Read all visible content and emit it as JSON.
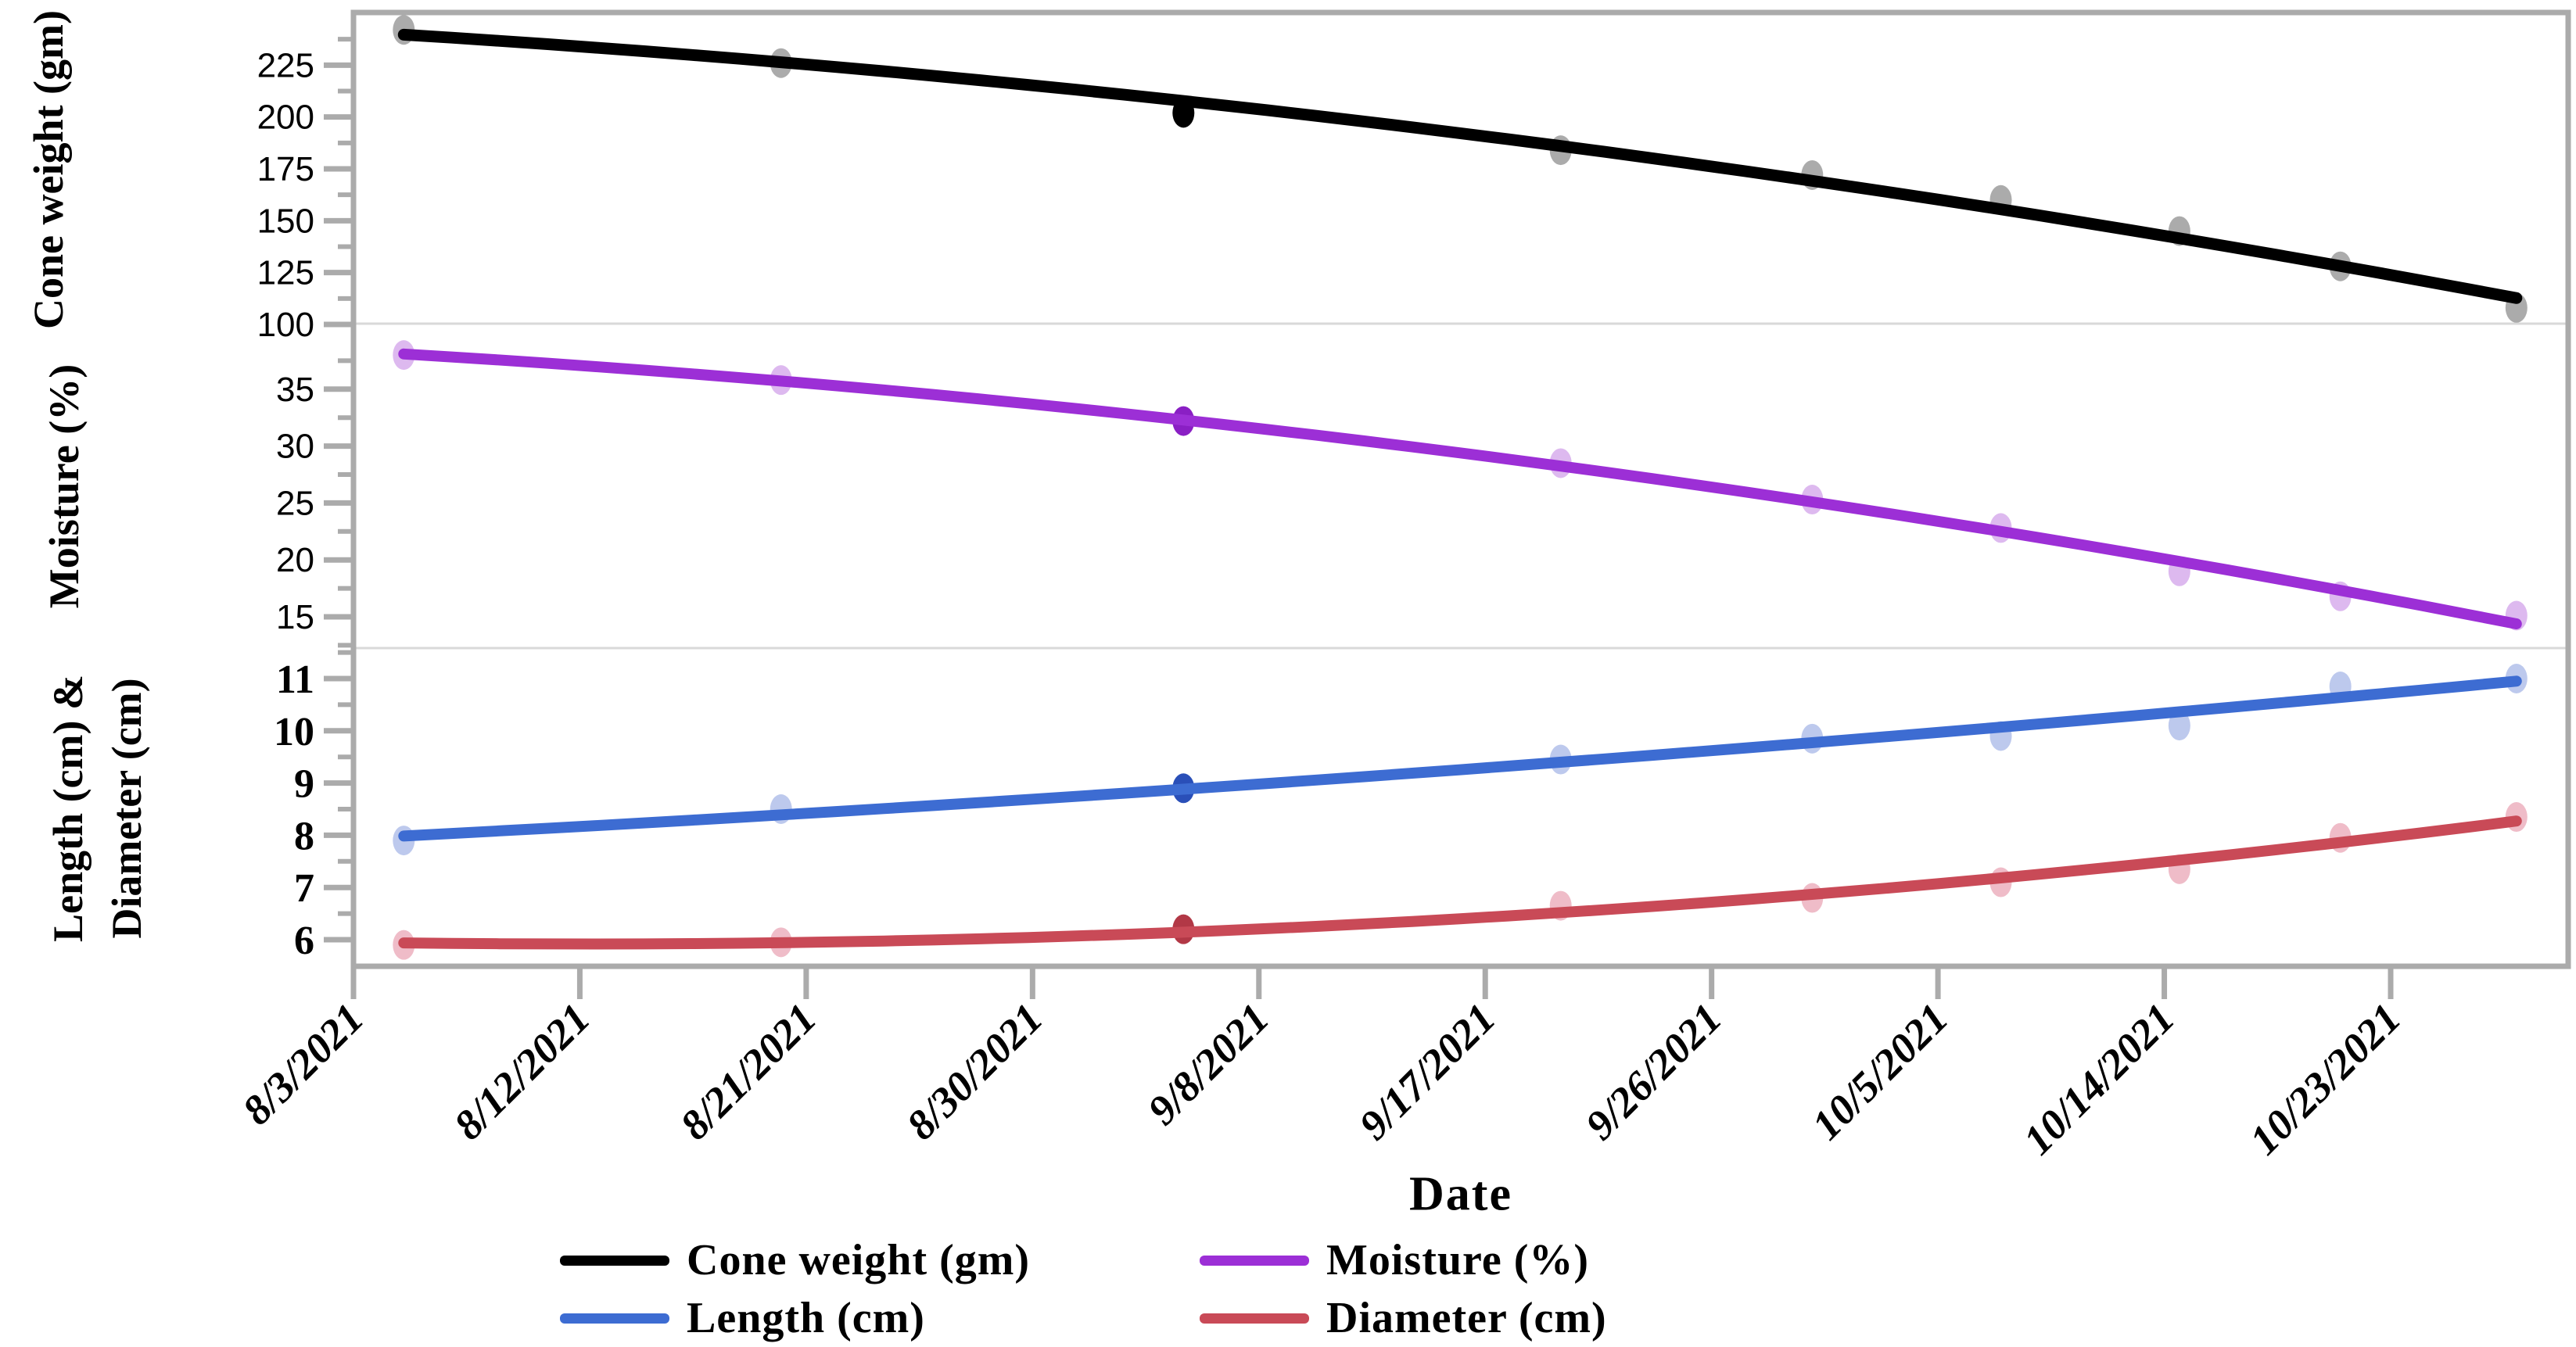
{
  "chart_data": {
    "type": "line",
    "title": "",
    "xlabel": "Date",
    "x_ticks": {
      "labels": [
        "8/3/2021",
        "8/12/2021",
        "8/21/2021",
        "8/30/2021",
        "9/8/2021",
        "9/17/2021",
        "9/26/2021",
        "10/5/2021",
        "10/14/2021",
        "10/23/2021"
      ],
      "days": [
        0,
        9,
        18,
        27,
        36,
        45,
        54,
        63,
        72,
        81
      ]
    },
    "x_range_days": [
      0,
      88
    ],
    "measurement_dates": [
      "8/5/2021",
      "8/20/2021",
      "9/5/2021",
      "9/20/2021",
      "9/30/2021",
      "10/7/2021",
      "10/14/2021",
      "10/21/2021",
      "10/28/2021"
    ],
    "measurement_days": [
      2,
      17,
      33,
      48,
      58,
      65.5,
      72.6,
      79,
      86
    ],
    "panels": [
      {
        "ylabel": "Cone weight  (gm)",
        "ylim": [
          100,
          250
        ],
        "yticks": [
          100,
          125,
          150,
          175,
          200,
          225
        ],
        "yticks_minor": [
          112.5,
          137.5,
          162.5,
          187.5,
          212.5,
          237.5
        ],
        "grid": "off"
      },
      {
        "ylabel": "Moisture (%)",
        "ylim": [
          12,
          41
        ],
        "yticks": [
          15,
          20,
          25,
          30,
          35
        ],
        "yticks_minor": [
          12.5,
          17.5,
          22.5,
          27.5,
          32.5,
          37.5
        ],
        "grid": "off"
      },
      {
        "ylabel_line1": "Length (cm) &",
        "ylabel_line2": "Diameter (cm)",
        "ylim": [
          5.5,
          11.55
        ],
        "yticks": [
          6,
          7,
          8,
          9,
          10,
          11
        ],
        "yticks_minor": [
          6.5,
          7.5,
          8.5,
          9.5,
          10.5,
          11.5
        ],
        "grid": "off"
      }
    ],
    "series": [
      {
        "name": "Cone weight  (gm)",
        "panel": 0,
        "line_color": "#000000",
        "marker_color": "#ABABAB",
        "marker_emphasis_color": "#000000",
        "emphasis_index": 2,
        "values": [
          242,
          226,
          202,
          184,
          172,
          160,
          145,
          128,
          108
        ]
      },
      {
        "name": "Moisture (%)",
        "panel": 1,
        "line_color": "#9C2FD6",
        "marker_color": "#DDB9EF",
        "marker_emphasis_color": "#8A1FC4",
        "emphasis_index": 2,
        "values": [
          38.0,
          35.8,
          32.2,
          28.5,
          25.3,
          22.8,
          19.0,
          16.8,
          15.1
        ]
      },
      {
        "name": "Length (cm)",
        "panel": 2,
        "line_color": "#3D6CD2",
        "marker_color": "#BDC9ED",
        "marker_emphasis_color": "#2A4FB8",
        "emphasis_index": 2,
        "values": [
          7.9,
          8.5,
          8.9,
          9.45,
          9.85,
          9.9,
          10.1,
          10.85,
          11.0
        ]
      },
      {
        "name": "Diameter (cm)",
        "panel": 2,
        "line_color": "#C94A57",
        "marker_color": "#EFBCC8",
        "marker_emphasis_color": "#B23846",
        "emphasis_index": 2,
        "values": [
          5.9,
          5.95,
          6.2,
          6.65,
          6.8,
          7.1,
          7.35,
          7.95,
          8.35
        ]
      }
    ],
    "legend": {
      "position": "bottom",
      "items": [
        {
          "label": "Cone weight  (gm)",
          "color": "#000000"
        },
        {
          "label": "Length (cm)",
          "color": "#3D6CD2"
        },
        {
          "label": "Moisture (%)",
          "color": "#9C2FD6"
        },
        {
          "label": "Diameter (cm)",
          "color": "#C94A57"
        }
      ]
    },
    "frame": {
      "border_color": "#ABABAB",
      "divider_color": "#D9D9D9",
      "tick_color": "#ABABAB",
      "background": "#FFFFFF"
    }
  }
}
